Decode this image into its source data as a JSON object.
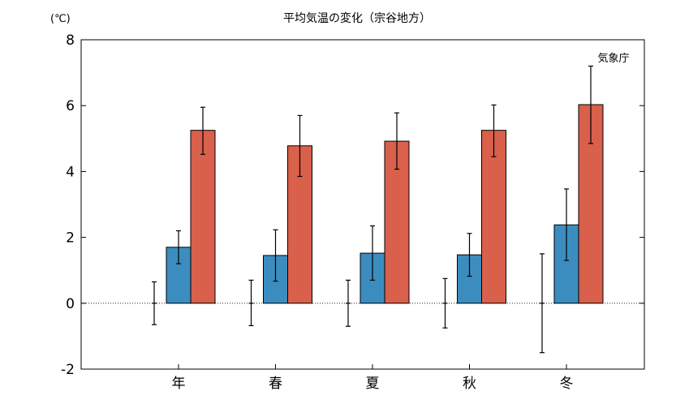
{
  "chart_data": {
    "type": "bar",
    "title": "平均気温の変化（宗谷地方）",
    "unit_label": "(℃)",
    "credit": "気象庁",
    "categories": [
      "年",
      "春",
      "夏",
      "秋",
      "冬"
    ],
    "ylim": [
      -2,
      8
    ],
    "yticks": [
      -2,
      0,
      2,
      4,
      6,
      8
    ],
    "grid": false,
    "zero_line": "dotted",
    "series": [
      {
        "color": "#9a9a9a",
        "values": [
          0,
          0,
          0,
          0,
          0
        ],
        "error_low": [
          -0.65,
          -0.68,
          -0.7,
          -0.75,
          -1.5
        ],
        "error_high": [
          0.65,
          0.7,
          0.7,
          0.75,
          1.5
        ]
      },
      {
        "color": "#3c8dbf",
        "values": [
          1.7,
          1.45,
          1.52,
          1.47,
          2.38
        ],
        "error_low": [
          1.2,
          0.67,
          0.7,
          0.82,
          1.3
        ],
        "error_high": [
          2.2,
          2.23,
          2.35,
          2.12,
          3.47
        ]
      },
      {
        "color": "#d9604a",
        "values": [
          5.25,
          4.78,
          4.92,
          5.25,
          6.03
        ],
        "error_low": [
          4.52,
          3.85,
          4.07,
          4.45,
          4.85
        ],
        "error_high": [
          5.95,
          5.7,
          5.78,
          6.02,
          7.2
        ]
      }
    ]
  }
}
